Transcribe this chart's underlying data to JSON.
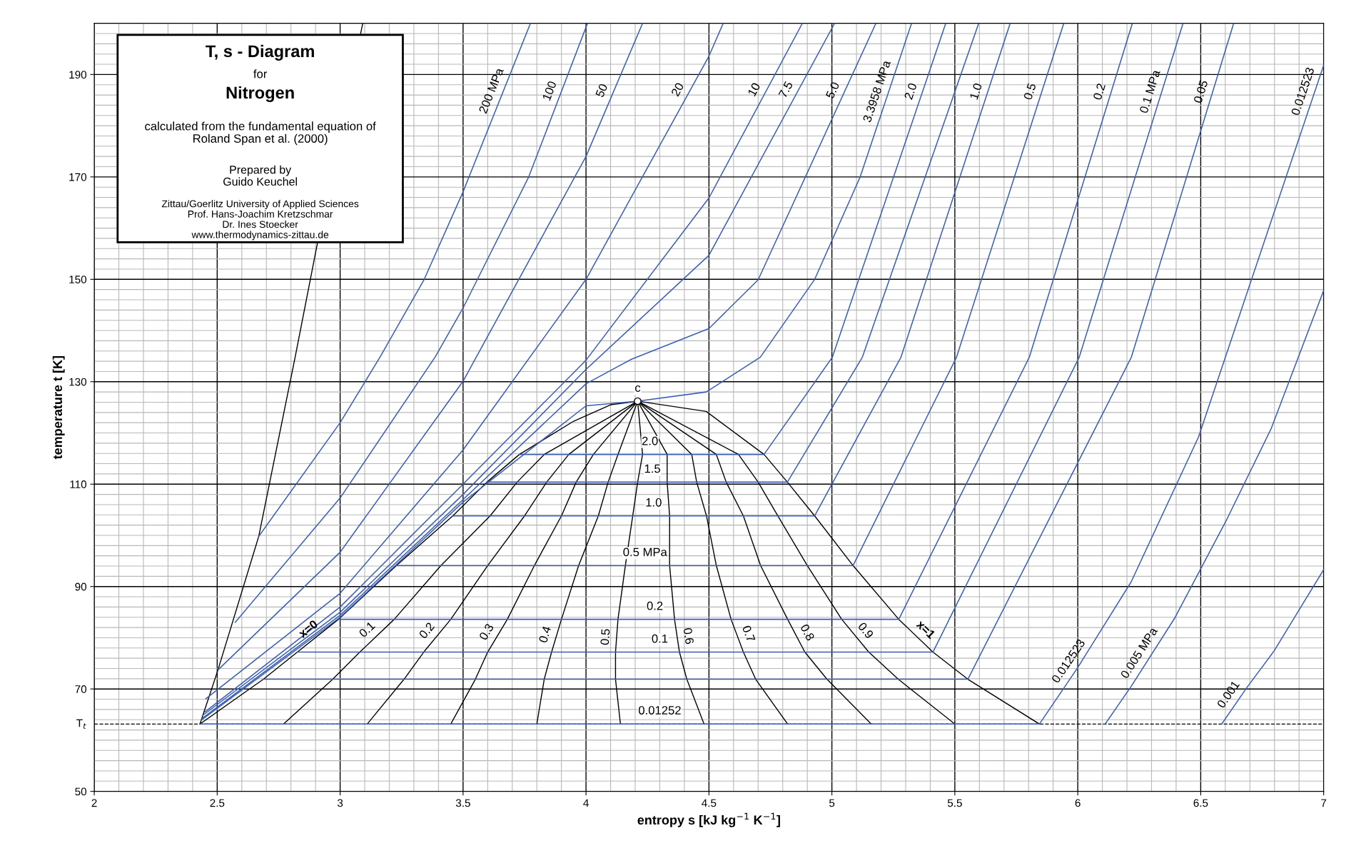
{
  "chart_data": {
    "type": "line",
    "title": "T, s - Diagram",
    "subtitle": "for",
    "xlabel": "entropy s [kJ kg$^{−1}$ K$^{−1}$]",
    "ylabel": "temperature t [K]",
    "xlim": [
      2,
      7
    ],
    "ylim": [
      50,
      200
    ],
    "xticks": [
      2,
      2.5,
      3,
      3.5,
      4,
      4.5,
      5,
      5.5,
      6,
      6.5,
      7
    ],
    "yticks": [
      50,
      70,
      90,
      110,
      130,
      150,
      170,
      190
    ],
    "grid": true,
    "ref_lines": [
      {
        "axis": "y",
        "value": 63.15,
        "label": "T$_{t}$",
        "color": "#000000",
        "line_style": "dashed"
      }
    ],
    "annotations": [
      "Nitrogen",
      "calculated from the fundamental equation of\nRoland Span et al. (2000)",
      "Prepared by\nGuido Keuchel",
      "Zittau/Goerlitz University of Applied Sciences\nProf. Hans-Joachim Kretzschmar\nDr. Ines Stoecker\nwww.thermodynamics-zittau.de",
      {
        "text": "c",
        "x": 4.21,
        "y": 126.2
      },
      {
        "text": "2.0",
        "x": 4.26,
        "y": 115.8
      },
      {
        "text": "1.5",
        "x": 4.27,
        "y": 110.4
      },
      {
        "text": "1.0",
        "x": 4.275,
        "y": 103.8
      },
      {
        "text": "0.5 MPa",
        "x": 4.24,
        "y": 94.1
      },
      {
        "text": "0.2",
        "x": 4.28,
        "y": 83.6
      },
      {
        "text": "0.1",
        "x": 4.3,
        "y": 77.2
      },
      {
        "text": "0.01252",
        "x": 4.3,
        "y": 63.2
      },
      {
        "text": "0.012523",
        "x": 6.959,
        "y": 186
      },
      {
        "text": "0.012523",
        "x": 6.0,
        "y": 74.2
      }
    ],
    "series": [
      {
        "color": "#000000",
        "x": [
          2.43,
          2.503,
          2.669,
          2.817,
          2.905,
          3.092
        ],
        "values": [
          63.15,
          73.7,
          99.8,
          134.8,
          156.4,
          200
        ]
      },
      {
        "name": "x=0",
        "color": "#000000",
        "x": [
          2.43,
          2.688,
          2.826,
          2.993,
          3.229,
          3.458,
          3.597,
          3.729,
          3.95,
          4.1,
          4.21
        ],
        "values": [
          63.15,
          71.9,
          77.2,
          83.6,
          94.1,
          103.8,
          110.4,
          115.8,
          122.3,
          125.5,
          126.2
        ]
      },
      {
        "name": "0.1",
        "color": "#000000",
        "x": [
          2.77,
          2.97,
          3.08,
          3.22,
          3.41,
          3.61,
          3.72,
          3.83,
          4.21
        ],
        "values": [
          63.15,
          71.9,
          77.2,
          83.6,
          94.1,
          103.8,
          110.4,
          115.8,
          126.2
        ]
      },
      {
        "name": "0.2",
        "color": "#000000",
        "x": [
          3.11,
          3.26,
          3.34,
          3.45,
          3.6,
          3.75,
          3.84,
          3.93,
          4.21
        ],
        "values": [
          63.15,
          71.9,
          77.2,
          83.6,
          94.1,
          103.8,
          110.4,
          115.8,
          126.2
        ]
      },
      {
        "name": "0.3",
        "color": "#000000",
        "x": [
          3.45,
          3.55,
          3.6,
          3.68,
          3.79,
          3.9,
          3.96,
          4.03,
          4.21
        ],
        "values": [
          63.15,
          71.9,
          77.2,
          83.6,
          94.1,
          103.8,
          110.4,
          115.8,
          126.2
        ]
      },
      {
        "name": "0.4",
        "color": "#000000",
        "x": [
          3.8,
          3.83,
          3.86,
          3.9,
          3.97,
          4.05,
          4.09,
          4.13,
          4.21
        ],
        "values": [
          63.15,
          71.9,
          77.2,
          83.6,
          94.1,
          103.8,
          110.4,
          115.8,
          126.2
        ]
      },
      {
        "name": "0.5",
        "color": "#000000",
        "x": [
          4.14,
          4.12,
          4.12,
          4.13,
          4.16,
          4.19,
          4.21,
          4.23,
          4.21
        ],
        "values": [
          63.15,
          71.9,
          77.2,
          83.6,
          94.1,
          103.8,
          110.4,
          115.8,
          126.2
        ]
      },
      {
        "name": "0.6",
        "color": "#000000",
        "x": [
          4.48,
          4.41,
          4.38,
          4.36,
          4.34,
          4.34,
          4.33,
          4.33,
          4.21
        ],
        "values": [
          63.15,
          71.9,
          77.2,
          83.6,
          94.1,
          103.8,
          110.4,
          115.8,
          126.2
        ]
      },
      {
        "name": "0.7",
        "color": "#000000",
        "x": [
          4.82,
          4.69,
          4.64,
          4.59,
          4.53,
          4.49,
          4.45,
          4.43,
          4.21
        ],
        "values": [
          63.15,
          71.9,
          77.2,
          83.6,
          94.1,
          103.8,
          110.4,
          115.8,
          126.2
        ]
      },
      {
        "name": "0.8",
        "color": "#000000",
        "x": [
          5.16,
          4.98,
          4.89,
          4.82,
          4.71,
          4.64,
          4.57,
          4.53,
          4.21
        ],
        "values": [
          63.15,
          71.9,
          77.2,
          83.6,
          94.1,
          103.8,
          110.4,
          115.8,
          126.2
        ]
      },
      {
        "name": "0.9",
        "color": "#000000",
        "x": [
          5.5,
          5.27,
          5.15,
          5.04,
          4.9,
          4.78,
          4.7,
          4.62,
          4.21
        ],
        "values": [
          63.15,
          71.9,
          77.2,
          83.6,
          94.1,
          103.8,
          110.4,
          115.8,
          126.2
        ]
      },
      {
        "name": "x=1",
        "color": "#000000",
        "x": [
          5.844,
          5.553,
          5.411,
          5.272,
          5.086,
          4.93,
          4.819,
          4.724,
          4.489,
          4.21
        ],
        "values": [
          63.15,
          71.9,
          77.2,
          83.6,
          94.1,
          103.8,
          110.4,
          115.8,
          124.2,
          126.2
        ]
      },
      {
        "name": "200 MPa",
        "color": "#3b5eb5",
        "x": [
          2.669,
          3.0,
          3.162,
          3.342,
          3.5,
          3.774
        ],
        "values": [
          99.8,
          122,
          134.8,
          150,
          167.1,
          200
        ]
      },
      {
        "name": "100",
        "color": "#3b5eb5",
        "x": [
          2.573,
          3.0,
          3.386,
          3.5,
          3.767,
          4.006
        ],
        "values": [
          83.0,
          107.3,
          134.8,
          144.4,
          170,
          200
        ]
      },
      {
        "name": "50",
        "color": "#3b5eb5",
        "x": [
          2.503,
          3.0,
          3.5,
          4.0,
          4.23
        ],
        "values": [
          73.7,
          96.7,
          130.1,
          174.0,
          200
        ]
      },
      {
        "name": "20",
        "color": "#3b5eb5",
        "x": [
          2.454,
          3.0,
          3.5,
          4.0,
          4.5,
          4.558
        ],
        "values": [
          68.1,
          88.7,
          116.7,
          150.0,
          193.6,
          200
        ]
      },
      {
        "name": "10",
        "color": "#3b5eb5",
        "x": [
          2.45,
          3.0,
          3.5,
          4.0,
          4.5,
          4.88
        ],
        "values": [
          65.5,
          86.0,
          110.0,
          134.2,
          165.9,
          200
        ]
      },
      {
        "name": "7.5",
        "color": "#3b5eb5",
        "x": [
          2.44,
          3.0,
          3.5,
          4.0,
          4.5,
          5.011
        ],
        "values": [
          64.8,
          85.0,
          108.0,
          132.4,
          154.7,
          200
        ]
      },
      {
        "name": "5.0",
        "color": "#3b5eb5",
        "x": [
          2.44,
          3.0,
          3.5,
          4.0,
          4.185,
          4.5,
          4.7,
          5.179
        ],
        "values": [
          64.3,
          84.4,
          107.0,
          129.6,
          134.4,
          140.4,
          149.9,
          200
        ]
      },
      {
        "name": "3.3958 MPa",
        "color": "#3b5eb5",
        "x": [
          2.435,
          3.0,
          3.5,
          4.0,
          4.21,
          4.489,
          4.709,
          4.93,
          5.115,
          5.324
        ],
        "values": [
          63.9,
          84.0,
          106.5,
          125.3,
          126.2,
          128.0,
          134.8,
          150,
          170,
          200
        ]
      },
      {
        "name": "2.0",
        "color": "#3b5eb5",
        "x": [
          3.729,
          4.724,
          5.002,
          5.463
        ],
        "values": [
          115.8,
          115.8,
          134.8,
          200
        ]
      },
      {
        "color": "#3b5eb5",
        "x": [
          3.597,
          4.819,
          5.124,
          5.597
        ],
        "values": [
          110.4,
          110.4,
          134.8,
          200
        ]
      },
      {
        "name": "1.0",
        "color": "#3b5eb5",
        "x": [
          3.458,
          4.93,
          5.281,
          5.725
        ],
        "values": [
          103.8,
          103.8,
          134.8,
          200
        ]
      },
      {
        "name": "0.5",
        "color": "#3b5eb5",
        "x": [
          3.229,
          5.086,
          5.507,
          5.943
        ],
        "values": [
          94.1,
          94.1,
          134.8,
          200
        ]
      },
      {
        "name": "0.2",
        "color": "#3b5eb5",
        "x": [
          2.993,
          5.272,
          5.803,
          6.222
        ],
        "values": [
          83.6,
          83.6,
          134.8,
          200
        ]
      },
      {
        "name": "0.1 MPa",
        "color": "#3b5eb5",
        "x": [
          2.826,
          5.411,
          6.006,
          6.428
        ],
        "values": [
          77.2,
          77.2,
          134.8,
          200
        ]
      },
      {
        "name": "0.05",
        "color": "#3b5eb5",
        "x": [
          2.688,
          5.553,
          6.218,
          6.634
        ],
        "values": [
          71.9,
          71.9,
          134.8,
          200
        ]
      },
      {
        "color": "#3b5eb5",
        "x": [
          2.43,
          5.844,
          6.0,
          6.217,
          6.491,
          7.0
        ],
        "values": [
          63.15,
          63.15,
          74.2,
          90.9,
          119.2,
          191.8
        ]
      },
      {
        "name": "0.005 MPa",
        "color": "#3b5eb5",
        "x": [
          6.111,
          6.217,
          6.395,
          6.607,
          6.787,
          7.0
        ],
        "values": [
          63.15,
          70.5,
          83.9,
          103.2,
          120.9,
          147.8
        ]
      },
      {
        "name": "0.001",
        "color": "#3b5eb5",
        "x": [
          6.585,
          6.691,
          6.798,
          7.0
        ],
        "values": [
          63.15,
          70.5,
          77.4,
          93.3
        ]
      },
      {
        "type": "scatter",
        "marker": "circle",
        "color": "#ffffff",
        "x": [
          4.21
        ],
        "values": [
          126.2
        ]
      }
    ]
  }
}
